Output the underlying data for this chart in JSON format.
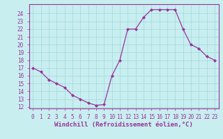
{
  "x": [
    0,
    1,
    2,
    3,
    4,
    5,
    6,
    7,
    8,
    9,
    10,
    11,
    12,
    13,
    14,
    15,
    16,
    17,
    18,
    19,
    20,
    21,
    22,
    23
  ],
  "y": [
    17,
    16.5,
    15.5,
    15,
    14.5,
    13.5,
    13,
    12.5,
    12.2,
    12.3,
    16,
    18,
    22,
    22,
    23.5,
    24.5,
    24.5,
    24.5,
    24.5,
    22,
    20,
    19.5,
    18.5,
    18
  ],
  "line_color": "#993399",
  "marker": "D",
  "marker_size": 2,
  "bg_color": "#c8eef0",
  "grid_color": "#a0d8dc",
  "xlabel": "Windchill (Refroidissement éolien,°C)",
  "ylim": [
    11.8,
    25.2
  ],
  "xlim": [
    -0.5,
    23.5
  ],
  "yticks": [
    12,
    13,
    14,
    15,
    16,
    17,
    18,
    19,
    20,
    21,
    22,
    23,
    24
  ],
  "xticks": [
    0,
    1,
    2,
    3,
    4,
    5,
    6,
    7,
    8,
    9,
    10,
    11,
    12,
    13,
    14,
    15,
    16,
    17,
    18,
    19,
    20,
    21,
    22,
    23
  ],
  "tick_color": "#993399",
  "label_fontsize": 6.5,
  "tick_fontsize": 5.5
}
